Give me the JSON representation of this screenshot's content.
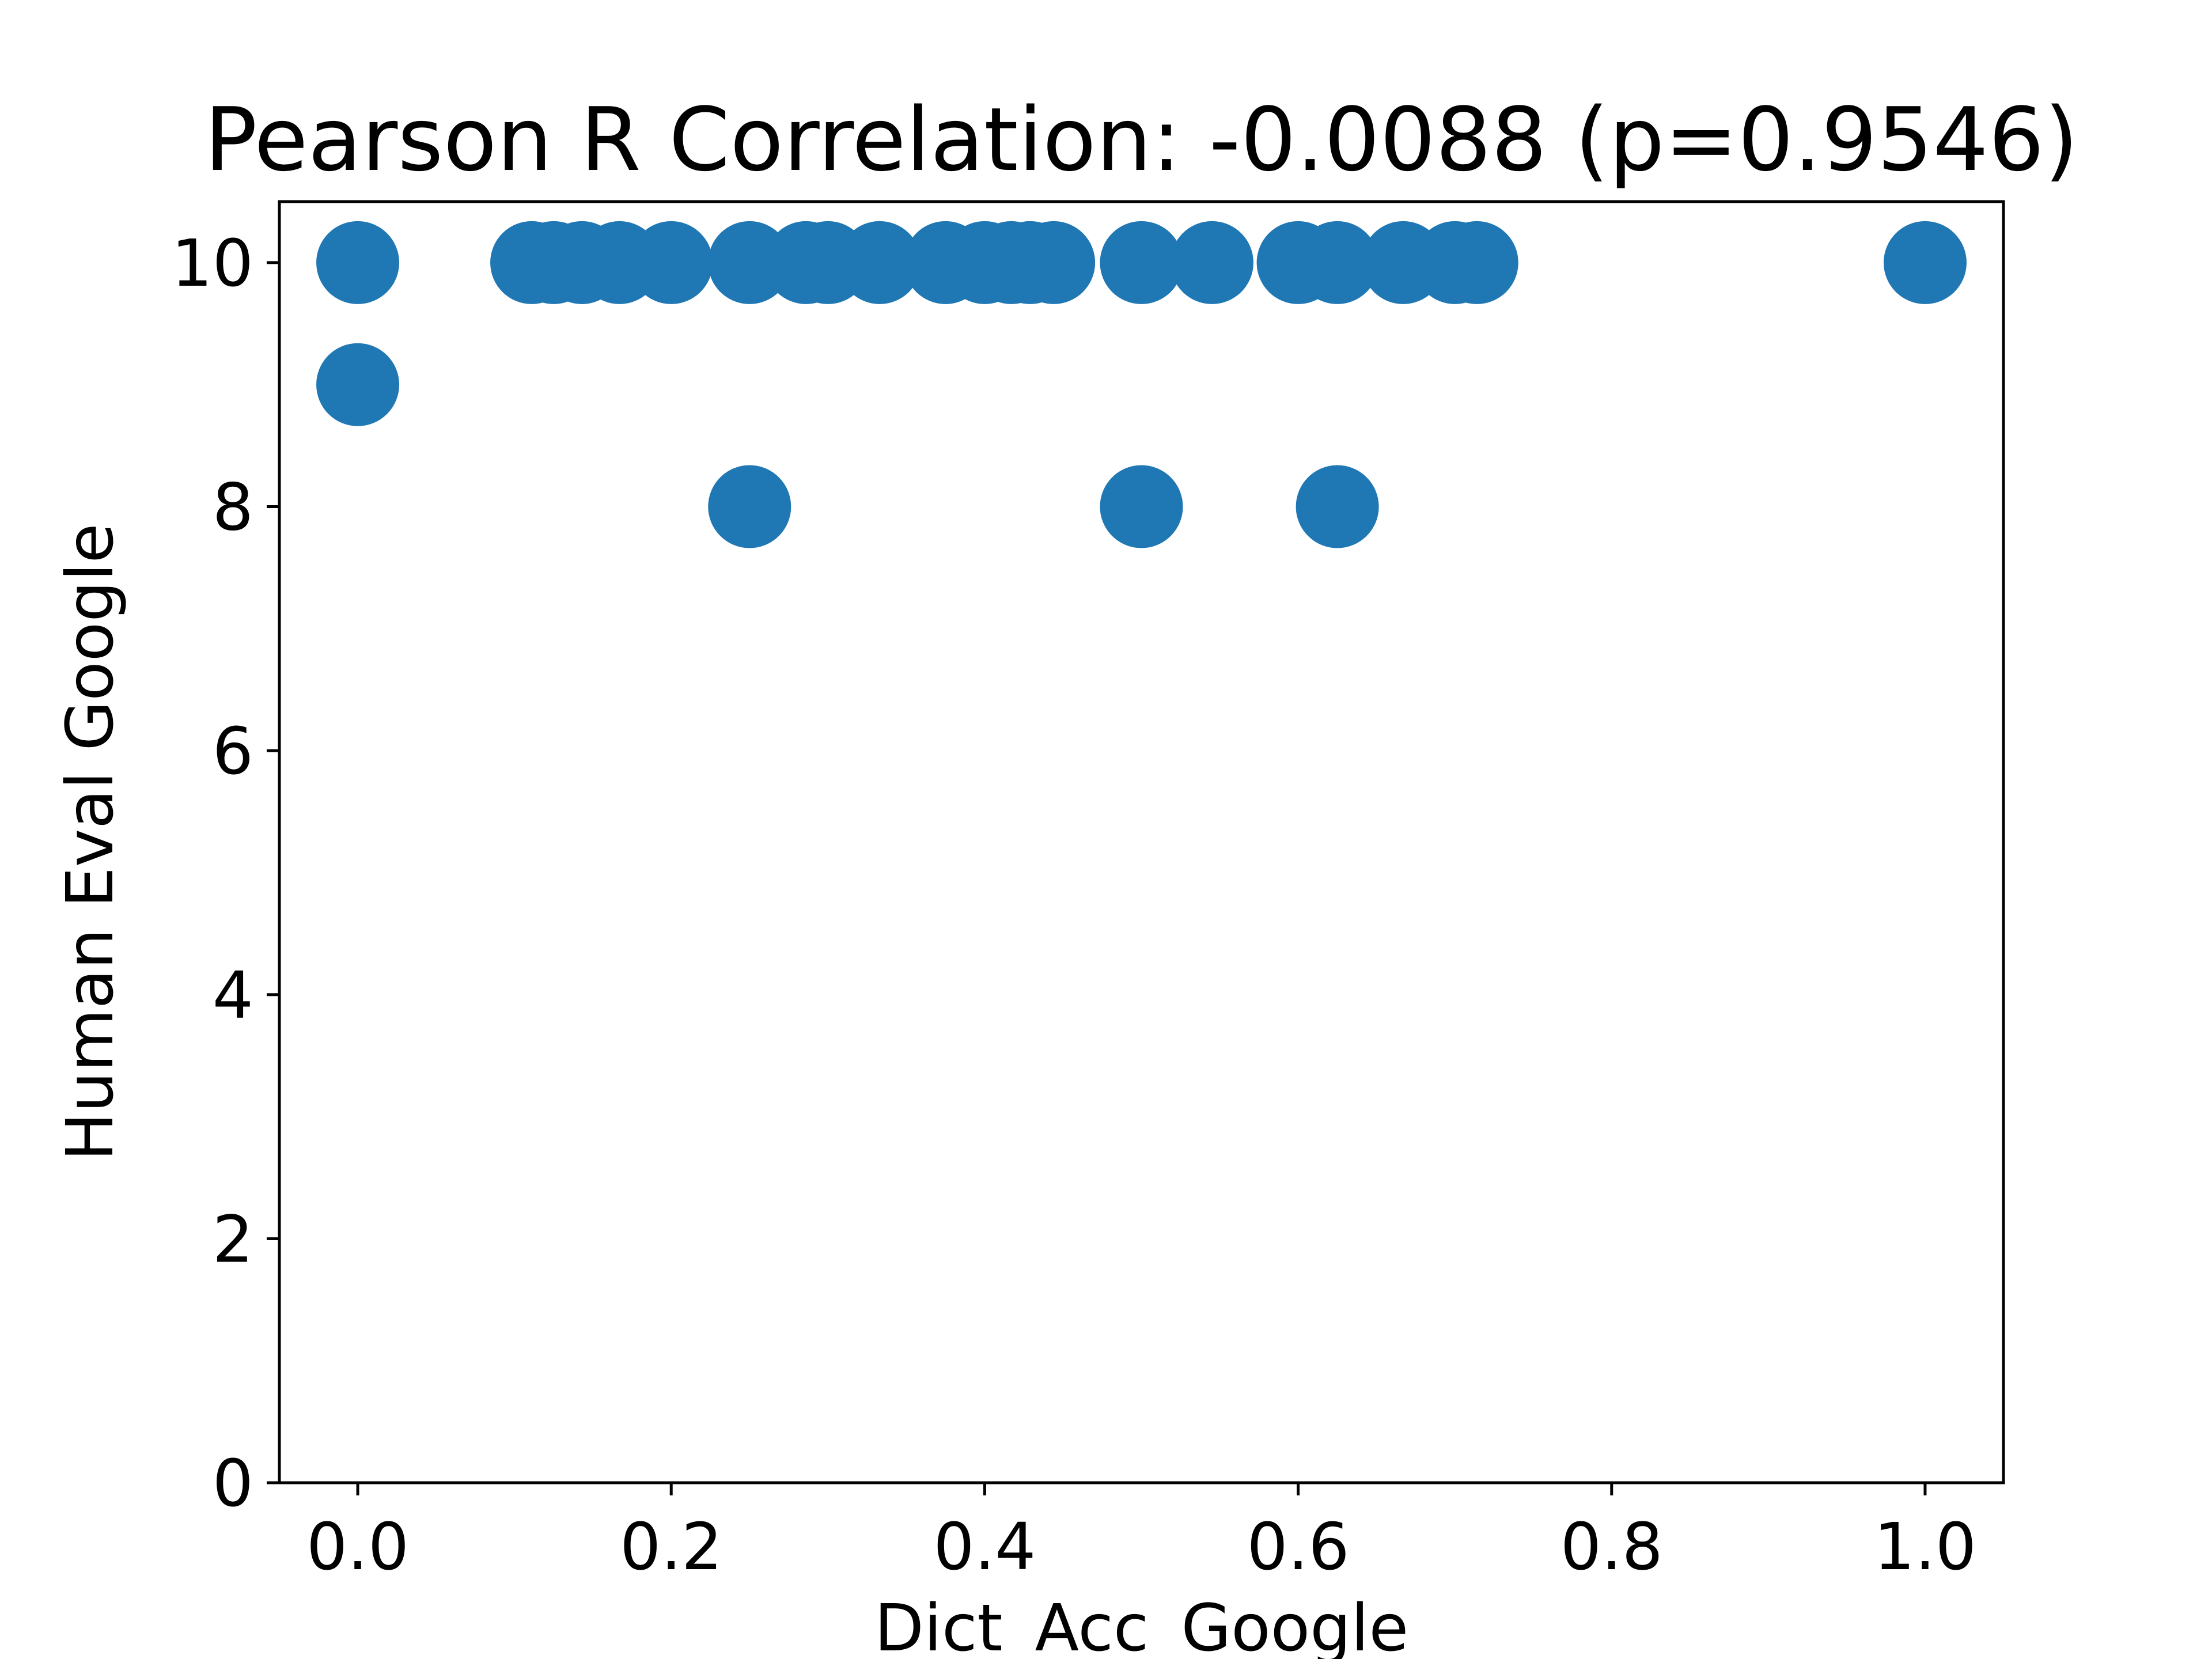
{
  "chart_data": {
    "type": "scatter",
    "title": "Pearson R Correlation: -0.0088 (p=0.9546)",
    "xlabel": "Dict_Acc_Google",
    "ylabel": "Human Eval Google",
    "xlim": [
      -0.05,
      1.05
    ],
    "ylim": [
      0,
      10.5
    ],
    "xticks": [
      0.0,
      0.2,
      0.4,
      0.6,
      0.8,
      1.0
    ],
    "xtick_labels": [
      "0.0",
      "0.2",
      "0.4",
      "0.6",
      "0.8",
      "1.0"
    ],
    "yticks": [
      0,
      2,
      4,
      6,
      8,
      10
    ],
    "ytick_labels": [
      "0",
      "2",
      "4",
      "6",
      "8",
      "10"
    ],
    "marker_color": "#1f77b4",
    "grid": false,
    "legend": false,
    "series": [
      {
        "x": [
          0.0,
          0.0,
          0.111,
          0.125,
          0.143,
          0.167,
          0.2,
          0.25,
          0.25,
          0.286,
          0.3,
          0.333,
          0.375,
          0.4,
          0.417,
          0.429,
          0.444,
          0.5,
          0.5,
          0.545,
          0.6,
          0.625,
          0.625,
          0.667,
          0.7,
          0.714,
          1.0
        ],
        "y": [
          10,
          9,
          10,
          10,
          10,
          10,
          10,
          10,
          8,
          10,
          10,
          10,
          10,
          10,
          10,
          10,
          10,
          10,
          8,
          10,
          10,
          10,
          8,
          10,
          10,
          10,
          10
        ]
      }
    ]
  }
}
